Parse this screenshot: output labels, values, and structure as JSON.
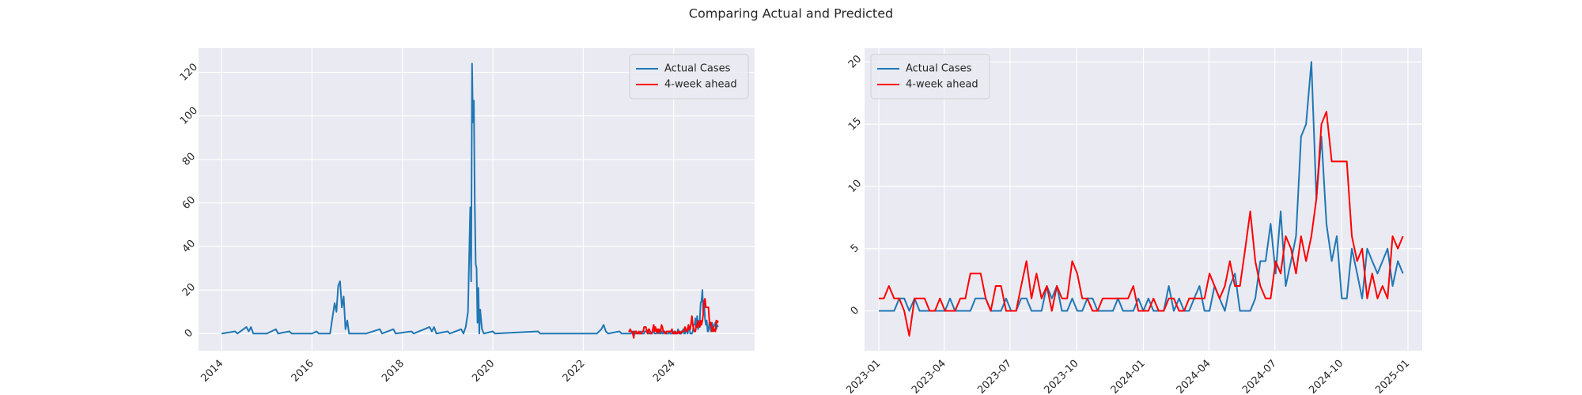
{
  "title": "Comparing Actual and Predicted",
  "chart_data": [
    {
      "type": "line",
      "legend": "upper right",
      "grid": true,
      "xlim": [
        2013.49,
        2025.79
      ],
      "xticks": [
        2014,
        2016,
        2018,
        2020,
        2022,
        2024
      ],
      "ylim": [
        -7.9,
        131.1
      ],
      "yticks": [
        0,
        20,
        40,
        60,
        80,
        100,
        120
      ],
      "x": [
        2023,
        2023.019,
        2023.038,
        2023.058,
        2023.077,
        2023.096,
        2023.115,
        2023.135,
        2023.154,
        2023.173,
        2023.192,
        2023.212,
        2023.231,
        2023.25,
        2023.269,
        2023.288,
        2023.308,
        2023.327,
        2023.346,
        2023.365,
        2023.385,
        2023.404,
        2023.423,
        2023.442,
        2023.462,
        2023.481,
        2023.5,
        2023.519,
        2023.538,
        2023.558,
        2023.577,
        2023.596,
        2023.615,
        2023.635,
        2023.654,
        2023.673,
        2023.692,
        2023.712,
        2023.731,
        2023.75,
        2023.769,
        2023.788,
        2023.808,
        2023.827,
        2023.846,
        2023.865,
        2023.885,
        2023.904,
        2023.923,
        2023.942,
        2023.962,
        2023.981,
        2024,
        2024.019,
        2024.038,
        2024.058,
        2024.077,
        2024.096,
        2024.115,
        2024.135,
        2024.154,
        2024.173,
        2024.192,
        2024.212,
        2024.231,
        2024.25,
        2024.269,
        2024.288,
        2024.308,
        2024.327,
        2024.346,
        2024.365,
        2024.385,
        2024.404,
        2024.423,
        2024.442,
        2024.462,
        2024.481,
        2024.5,
        2024.519,
        2024.538,
        2024.558,
        2024.577,
        2024.596,
        2024.615,
        2024.635,
        2024.654,
        2024.673,
        2024.692,
        2024.712,
        2024.731,
        2024.75,
        2024.769,
        2024.788,
        2024.808,
        2024.827,
        2024.846,
        2024.865,
        2024.885,
        2024.904,
        2024.923,
        2024.942,
        2024.962,
        2024.981
      ],
      "series": [
        {
          "name": "Actual Cases",
          "color": "#1f77b4",
          "x": [
            2014,
            2014.3,
            2014.35,
            2014.55,
            2014.6,
            2014.65,
            2014.7,
            2015,
            2015.2,
            2015.25,
            2015.5,
            2015.55,
            2016,
            2016.1,
            2016.15,
            2016.4,
            2016.5,
            2016.54,
            2016.58,
            2016.62,
            2016.66,
            2016.7,
            2016.74,
            2016.78,
            2016.82,
            2017.2,
            2017.5,
            2017.55,
            2017.8,
            2017.85,
            2018.2,
            2018.25,
            2018.6,
            2018.65,
            2018.7,
            2018.75,
            2019,
            2019.05,
            2019.3,
            2019.35,
            2019.4,
            2019.45,
            2019.5,
            2019.52,
            2019.54,
            2019.56,
            2019.58,
            2019.6,
            2019.62,
            2019.64,
            2019.66,
            2019.68,
            2019.7,
            2019.72,
            2019.76,
            2019.8,
            2020,
            2020.05,
            2021,
            2021.05,
            2022.3,
            2022.4,
            2022.45,
            2022.5,
            2022.55,
            2022.8,
            2022.85,
            2023,
            2023.019,
            2023.038,
            2023.058,
            2023.077,
            2023.096,
            2023.115,
            2023.135,
            2023.154,
            2023.173,
            2023.192,
            2023.212,
            2023.231,
            2023.25,
            2023.269,
            2023.288,
            2023.308,
            2023.327,
            2023.346,
            2023.365,
            2023.385,
            2023.404,
            2023.423,
            2023.442,
            2023.462,
            2023.481,
            2023.5,
            2023.519,
            2023.538,
            2023.558,
            2023.577,
            2023.596,
            2023.615,
            2023.635,
            2023.654,
            2023.673,
            2023.692,
            2023.712,
            2023.731,
            2023.75,
            2023.769,
            2023.788,
            2023.808,
            2023.827,
            2023.846,
            2023.865,
            2023.885,
            2023.904,
            2023.923,
            2023.942,
            2023.962,
            2023.981,
            2024,
            2024.019,
            2024.038,
            2024.058,
            2024.077,
            2024.096,
            2024.115,
            2024.135,
            2024.154,
            2024.173,
            2024.192,
            2024.212,
            2024.231,
            2024.25,
            2024.269,
            2024.288,
            2024.308,
            2024.327,
            2024.346,
            2024.365,
            2024.385,
            2024.404,
            2024.423,
            2024.442,
            2024.462,
            2024.481,
            2024.5,
            2024.519,
            2024.538,
            2024.558,
            2024.577,
            2024.596,
            2024.615,
            2024.635,
            2024.654,
            2024.673,
            2024.692,
            2024.712,
            2024.731,
            2024.75,
            2024.769,
            2024.788,
            2024.808,
            2024.827,
            2024.846,
            2024.865,
            2024.885,
            2024.904,
            2024.923,
            2024.942,
            2024.962,
            2024.981
          ],
          "values": [
            0,
            1,
            0,
            3,
            1,
            3,
            0,
            0,
            2,
            0,
            1,
            0,
            0,
            1,
            0,
            0,
            14,
            10,
            22,
            24,
            12,
            17,
            2,
            6,
            0,
            0,
            2,
            0,
            2,
            0,
            1,
            0,
            3,
            1,
            3,
            0,
            1,
            0,
            2,
            0,
            3,
            10,
            58,
            24,
            124,
            97,
            107,
            60,
            32,
            30,
            5,
            21,
            0,
            11,
            2,
            0,
            1,
            0,
            1,
            0,
            0,
            2,
            4,
            1,
            0,
            1,
            0,
            0,
            0,
            0,
            0,
            1,
            1,
            0,
            1,
            0,
            0,
            0,
            0,
            0,
            0,
            1,
            0,
            0,
            0,
            0,
            1,
            1,
            1,
            0,
            0,
            0,
            1,
            0,
            0,
            1,
            1,
            0,
            0,
            0,
            2,
            1,
            2,
            0,
            0,
            1,
            0,
            0,
            1,
            1,
            0,
            0,
            0,
            0,
            1,
            0,
            0,
            0,
            1,
            0,
            1,
            0,
            0,
            0,
            2,
            0,
            1,
            0,
            0,
            1,
            2,
            0,
            0,
            2,
            1,
            0,
            2,
            3,
            0,
            0,
            0,
            1,
            4,
            4,
            7,
            3,
            8,
            2,
            4,
            6,
            14,
            15,
            20,
            9,
            14,
            7,
            4,
            6,
            1,
            1,
            5,
            3,
            1,
            5,
            4,
            3,
            4,
            5,
            2,
            4,
            3
          ]
        },
        {
          "name": "4-week ahead",
          "color": "#ff0000",
          "values": [
            1,
            1,
            2,
            1,
            1,
            0,
            -2,
            1,
            1,
            1,
            0,
            0,
            1,
            0,
            0,
            0,
            1,
            1,
            3,
            3,
            3,
            1,
            0,
            2,
            2,
            0,
            0,
            0,
            2,
            4,
            1,
            3,
            1,
            2,
            0,
            2,
            1,
            1,
            4,
            3,
            1,
            1,
            0,
            0,
            1,
            1,
            1,
            1,
            1,
            1,
            2,
            0,
            0,
            0,
            1,
            0,
            0,
            1,
            1,
            0,
            0,
            1,
            1,
            1,
            1,
            3,
            2,
            1,
            2,
            4,
            2,
            2,
            5,
            8,
            4,
            2,
            1,
            1,
            4,
            3,
            6,
            5,
            3,
            6,
            4,
            6,
            9,
            15,
            16,
            12,
            12,
            12,
            12,
            6,
            4,
            5,
            1,
            3,
            1,
            2,
            1,
            6,
            5,
            6
          ]
        }
      ]
    },
    {
      "type": "line",
      "legend": "upper left",
      "grid": true,
      "xlim": [
        2022.946,
        2025.054
      ],
      "xticks": [
        {
          "value": 2023,
          "label": "2023-01"
        },
        {
          "value": 2023.247,
          "label": "2023-04"
        },
        {
          "value": 2023.496,
          "label": "2023-07"
        },
        {
          "value": 2023.748,
          "label": "2023-10"
        },
        {
          "value": 2024,
          "label": "2024-01"
        },
        {
          "value": 2024.248,
          "label": "2024-04"
        },
        {
          "value": 2024.497,
          "label": "2024-07"
        },
        {
          "value": 2024.749,
          "label": "2024-10"
        },
        {
          "value": 2025,
          "label": "2025-01"
        }
      ],
      "ylim": [
        -3.2,
        21.1
      ],
      "yticks": [
        0,
        5,
        10,
        15,
        20
      ],
      "x": [
        2023,
        2023.019,
        2023.038,
        2023.058,
        2023.077,
        2023.096,
        2023.115,
        2023.135,
        2023.154,
        2023.173,
        2023.192,
        2023.212,
        2023.231,
        2023.25,
        2023.269,
        2023.288,
        2023.308,
        2023.327,
        2023.346,
        2023.365,
        2023.385,
        2023.404,
        2023.423,
        2023.442,
        2023.462,
        2023.481,
        2023.5,
        2023.519,
        2023.538,
        2023.558,
        2023.577,
        2023.596,
        2023.615,
        2023.635,
        2023.654,
        2023.673,
        2023.692,
        2023.712,
        2023.731,
        2023.75,
        2023.769,
        2023.788,
        2023.808,
        2023.827,
        2023.846,
        2023.865,
        2023.885,
        2023.904,
        2023.923,
        2023.942,
        2023.962,
        2023.981,
        2024,
        2024.019,
        2024.038,
        2024.058,
        2024.077,
        2024.096,
        2024.115,
        2024.135,
        2024.154,
        2024.173,
        2024.192,
        2024.212,
        2024.231,
        2024.25,
        2024.269,
        2024.288,
        2024.308,
        2024.327,
        2024.346,
        2024.365,
        2024.385,
        2024.404,
        2024.423,
        2024.442,
        2024.462,
        2024.481,
        2024.5,
        2024.519,
        2024.538,
        2024.558,
        2024.577,
        2024.596,
        2024.615,
        2024.635,
        2024.654,
        2024.673,
        2024.692,
        2024.712,
        2024.731,
        2024.75,
        2024.769,
        2024.788,
        2024.808,
        2024.827,
        2024.846,
        2024.865,
        2024.885,
        2024.904,
        2024.923,
        2024.942,
        2024.962,
        2024.981
      ],
      "series": [
        {
          "name": "Actual Cases",
          "color": "#1f77b4",
          "values": [
            0,
            0,
            0,
            0,
            1,
            1,
            0,
            1,
            0,
            0,
            0,
            0,
            0,
            0,
            1,
            0,
            0,
            0,
            0,
            1,
            1,
            1,
            0,
            0,
            0,
            1,
            0,
            0,
            1,
            1,
            0,
            0,
            0,
            2,
            1,
            2,
            0,
            0,
            1,
            0,
            0,
            1,
            1,
            0,
            0,
            0,
            0,
            1,
            0,
            0,
            0,
            1,
            0,
            1,
            0,
            0,
            0,
            2,
            0,
            1,
            0,
            0,
            1,
            2,
            0,
            0,
            2,
            1,
            0,
            2,
            3,
            0,
            0,
            0,
            1,
            4,
            4,
            7,
            3,
            8,
            2,
            4,
            6,
            14,
            15,
            20,
            9,
            14,
            7,
            4,
            6,
            1,
            1,
            5,
            3,
            1,
            5,
            4,
            3,
            4,
            5,
            2,
            4,
            3
          ]
        },
        {
          "name": "4-week ahead",
          "color": "#ff0000",
          "values": [
            1,
            1,
            2,
            1,
            1,
            0,
            -2,
            1,
            1,
            1,
            0,
            0,
            1,
            0,
            0,
            0,
            1,
            1,
            3,
            3,
            3,
            1,
            0,
            2,
            2,
            0,
            0,
            0,
            2,
            4,
            1,
            3,
            1,
            2,
            0,
            2,
            1,
            1,
            4,
            3,
            1,
            1,
            0,
            0,
            1,
            1,
            1,
            1,
            1,
            1,
            2,
            0,
            0,
            0,
            1,
            0,
            0,
            1,
            1,
            0,
            0,
            1,
            1,
            1,
            1,
            3,
            2,
            1,
            2,
            4,
            2,
            2,
            5,
            8,
            4,
            2,
            1,
            1,
            4,
            3,
            6,
            5,
            3,
            6,
            4,
            6,
            9,
            15,
            16,
            12,
            12,
            12,
            12,
            6,
            4,
            5,
            1,
            3,
            1,
            2,
            1,
            6,
            5,
            6
          ]
        }
      ]
    }
  ]
}
